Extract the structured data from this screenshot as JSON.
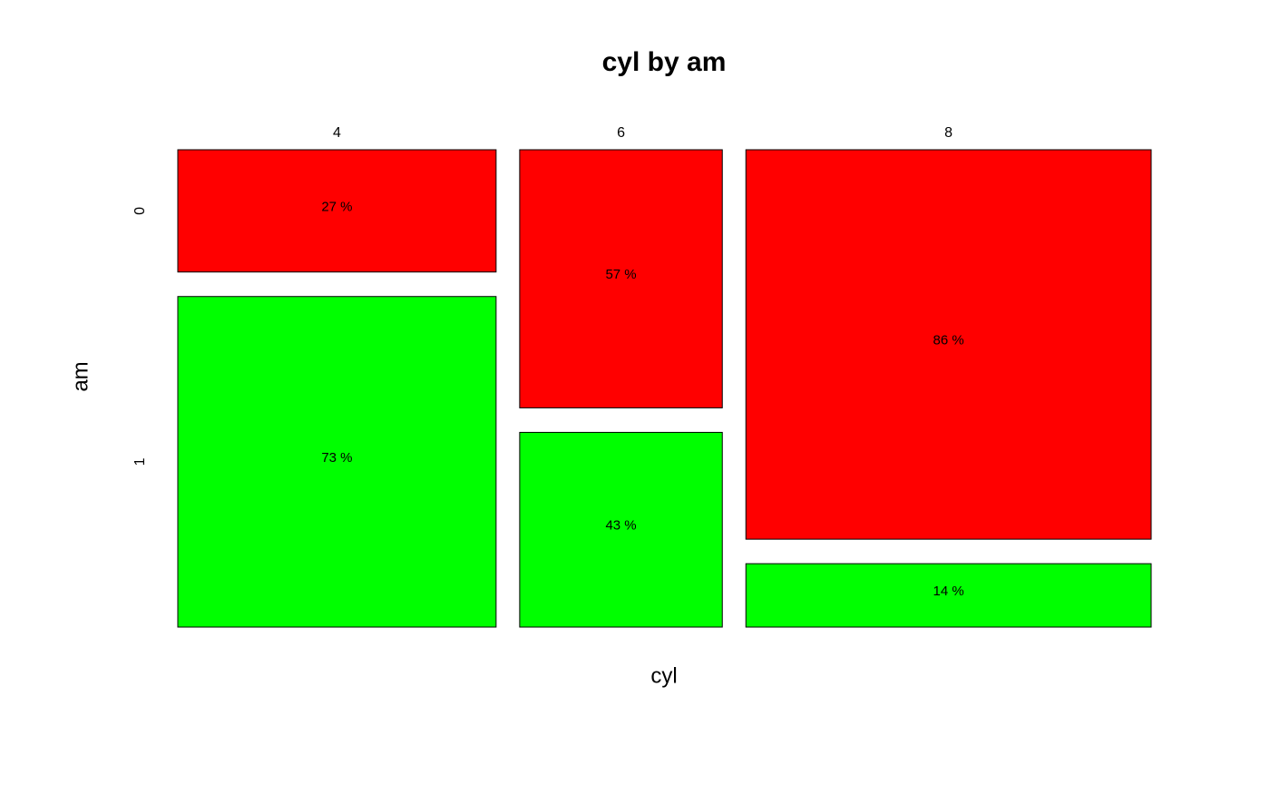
{
  "chart_data": {
    "type": "mosaic",
    "title": "cyl by am",
    "x_label": "cyl",
    "y_label": "am",
    "categories": [
      "4",
      "6",
      "8"
    ],
    "column_shares": [
      34.4,
      21.9,
      43.8
    ],
    "series": [
      {
        "name": "0",
        "color": "#ff0000",
        "values": [
          27,
          57,
          86
        ],
        "value_labels": [
          "27 %",
          "57 %",
          "86 %"
        ]
      },
      {
        "name": "1",
        "color": "#00ff00",
        "values": [
          73,
          43,
          14
        ],
        "value_labels": [
          "73 %",
          "43 %",
          "14 %"
        ]
      }
    ]
  }
}
